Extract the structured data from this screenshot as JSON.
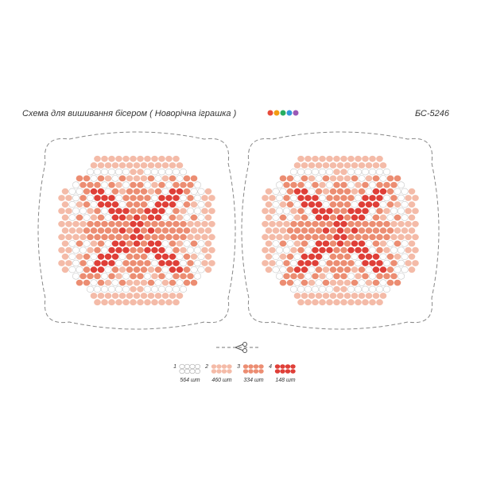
{
  "header": {
    "title": "Схема для вишивання бісером ( Новорічна іграшка )",
    "code": "БС-5246"
  },
  "legend": [
    {
      "number": "1",
      "count": "564 шт"
    },
    {
      "number": "2",
      "count": "460 шт"
    },
    {
      "number": "3",
      "count": "334 шт"
    },
    {
      "number": "4",
      "count": "148 шт"
    }
  ]
}
